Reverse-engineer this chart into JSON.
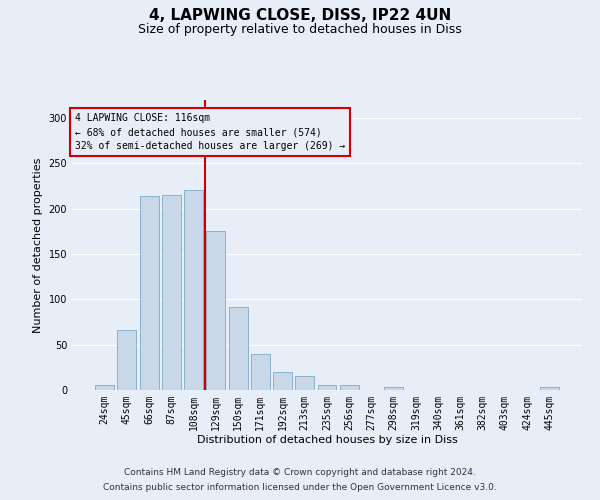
{
  "title": "4, LAPWING CLOSE, DISS, IP22 4UN",
  "subtitle": "Size of property relative to detached houses in Diss",
  "xlabel": "Distribution of detached houses by size in Diss",
  "ylabel": "Number of detached properties",
  "footnote1": "Contains HM Land Registry data © Crown copyright and database right 2024.",
  "footnote2": "Contains public sector information licensed under the Open Government Licence v3.0.",
  "categories": [
    "24sqm",
    "45sqm",
    "66sqm",
    "87sqm",
    "108sqm",
    "129sqm",
    "150sqm",
    "171sqm",
    "192sqm",
    "213sqm",
    "235sqm",
    "256sqm",
    "277sqm",
    "298sqm",
    "319sqm",
    "340sqm",
    "361sqm",
    "382sqm",
    "403sqm",
    "424sqm",
    "445sqm"
  ],
  "values": [
    5,
    66,
    214,
    215,
    221,
    175,
    92,
    40,
    20,
    15,
    6,
    5,
    0,
    3,
    0,
    0,
    0,
    0,
    0,
    0,
    3
  ],
  "bar_color": "#c8d8e8",
  "bar_edgecolor": "#7aaac8",
  "vline_x": 4.5,
  "vline_color": "#cc0000",
  "annotation_line1": "4 LAPWING CLOSE: 116sqm",
  "annotation_line2": "← 68% of detached houses are smaller (574)",
  "annotation_line3": "32% of semi-detached houses are larger (269) →",
  "annotation_box_color": "#cc0000",
  "ylim": [
    0,
    320
  ],
  "yticks": [
    0,
    50,
    100,
    150,
    200,
    250,
    300
  ],
  "background_color": "#e8eef8",
  "grid_color": "#ffffff",
  "title_fontsize": 11,
  "subtitle_fontsize": 9,
  "axis_label_fontsize": 8,
  "tick_fontsize": 7,
  "footnote_fontsize": 6.5
}
